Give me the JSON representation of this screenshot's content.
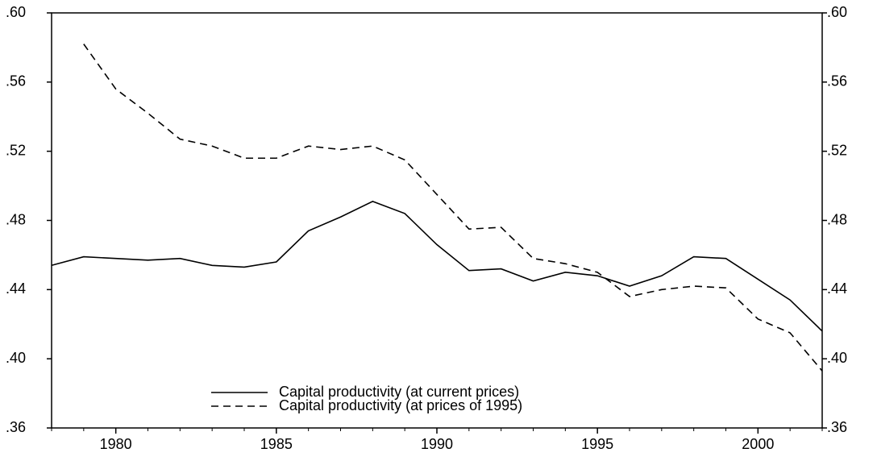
{
  "chart_data": {
    "type": "line",
    "x": [
      1978,
      1979,
      1980,
      1981,
      1982,
      1983,
      1984,
      1985,
      1986,
      1987,
      1988,
      1989,
      1990,
      1991,
      1992,
      1993,
      1994,
      1995,
      1996,
      1997,
      1998,
      1999,
      2000,
      2001,
      2002
    ],
    "series": [
      {
        "name": "Capital productivity (at current prices)",
        "color": "#000000",
        "dash": "solid",
        "values": [
          0.454,
          0.459,
          0.458,
          0.457,
          0.458,
          0.454,
          0.453,
          0.456,
          0.474,
          0.482,
          0.491,
          0.484,
          0.466,
          0.451,
          0.452,
          0.445,
          0.45,
          0.448,
          0.442,
          0.448,
          0.459,
          0.458,
          0.446,
          0.434,
          0.416
        ]
      },
      {
        "name": "Capital productivity (at prices of 1995)",
        "color": "#000000",
        "dash": "dashed",
        "values": [
          null,
          0.582,
          0.556,
          0.542,
          0.527,
          0.523,
          0.516,
          0.516,
          0.523,
          0.521,
          0.523,
          0.515,
          0.495,
          0.475,
          0.476,
          0.458,
          0.455,
          0.45,
          0.436,
          0.44,
          0.442,
          0.441,
          0.423,
          0.415,
          0.393
        ]
      }
    ],
    "xlim": [
      1978,
      2002
    ],
    "xticks": [
      1980,
      1985,
      1990,
      1995,
      2000
    ],
    "ylim": [
      0.36,
      0.6
    ],
    "yticks": [
      {
        "value": 0.36,
        "label": ".36"
      },
      {
        "value": 0.4,
        "label": ".40"
      },
      {
        "value": 0.44,
        "label": ".44"
      },
      {
        "value": 0.48,
        "label": ".48"
      },
      {
        "value": 0.52,
        "label": ".52"
      },
      {
        "value": 0.56,
        "label": ".56"
      },
      {
        "value": 0.6,
        "label": ".60"
      }
    ],
    "y2lim": [
      0.36,
      0.6
    ],
    "y2ticks": [
      {
        "value": 0.36,
        "label": ".36"
      },
      {
        "value": 0.4,
        "label": ".40"
      },
      {
        "value": 0.44,
        "label": ".44"
      },
      {
        "value": 0.48,
        "label": ".48"
      },
      {
        "value": 0.52,
        "label": ".52"
      },
      {
        "value": 0.56,
        "label": ".56"
      },
      {
        "value": 0.6,
        "label": ".60"
      }
    ],
    "grid": false,
    "legend": "bottom"
  }
}
